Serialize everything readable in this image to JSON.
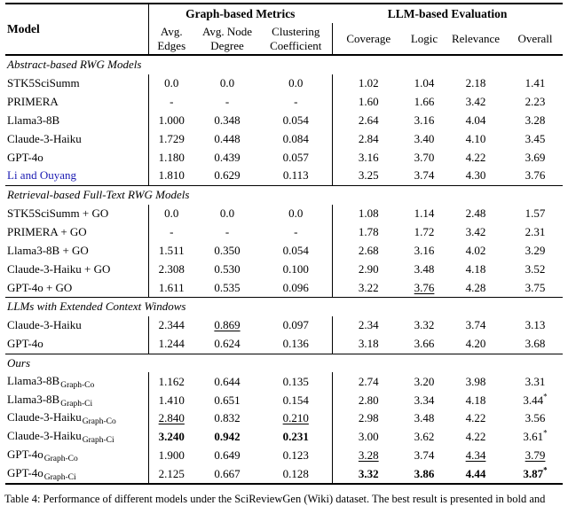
{
  "table": {
    "header": {
      "model": "Model",
      "groups": [
        {
          "label": "Graph-based Metrics"
        },
        {
          "label": "LLM-based Evaluation"
        }
      ],
      "subheaders": [
        "Avg.\nEdges",
        "Avg. Node\nDegree",
        "Clustering\nCoefficient",
        "Coverage",
        "Logic",
        "Relevance",
        "Overall"
      ]
    },
    "sections": [
      {
        "title": "Abstract-based RWG Models",
        "rows": [
          {
            "model": "STK5SciSumm",
            "values": [
              "0.0",
              "0.0",
              "0.0",
              "1.02",
              "1.04",
              "2.18",
              "1.41"
            ]
          },
          {
            "model": "PRIMERA",
            "values": [
              "-",
              "-",
              "-",
              "1.60",
              "1.66",
              "3.42",
              "2.23"
            ]
          },
          {
            "model": "Llama3-8B",
            "values": [
              "1.000",
              "0.348",
              "0.054",
              "2.64",
              "3.16",
              "4.04",
              "3.28"
            ]
          },
          {
            "model": "Claude-3-Haiku",
            "values": [
              "1.729",
              "0.448",
              "0.084",
              "2.84",
              "3.40",
              "4.10",
              "3.45"
            ]
          },
          {
            "model": "GPT-4o",
            "values": [
              "1.180",
              "0.439",
              "0.057",
              "3.16",
              "3.70",
              "4.22",
              "3.69"
            ]
          },
          {
            "model": "Li and Ouyang",
            "cite": true,
            "values": [
              "1.810",
              "0.629",
              "0.113",
              "3.25",
              "3.74",
              "4.30",
              "3.76"
            ]
          }
        ]
      },
      {
        "title": "Retrieval-based Full-Text RWG Models",
        "rows": [
          {
            "model": "STK5SciSumm + GO",
            "values": [
              "0.0",
              "0.0",
              "0.0",
              "1.08",
              "1.14",
              "2.48",
              "1.57"
            ]
          },
          {
            "model": "PRIMERA + GO",
            "values": [
              "-",
              "-",
              "-",
              "1.78",
              "1.72",
              "3.42",
              "2.31"
            ]
          },
          {
            "model": "Llama3-8B + GO",
            "values": [
              "1.511",
              "0.350",
              "0.054",
              "2.68",
              "3.16",
              "4.02",
              "3.29"
            ]
          },
          {
            "model": "Claude-3-Haiku + GO",
            "values": [
              "2.308",
              "0.530",
              "0.100",
              "2.90",
              "3.48",
              "4.18",
              "3.52"
            ]
          },
          {
            "model": "GPT-4o + GO",
            "values": [
              "1.611",
              "0.535",
              "0.096",
              "3.22",
              {
                "t": "3.76",
                "u": true
              },
              "4.28",
              "3.75"
            ]
          }
        ]
      },
      {
        "title": "LLMs with Extended Context Windows",
        "rows": [
          {
            "model": "Claude-3-Haiku",
            "values": [
              "2.344",
              {
                "t": "0.869",
                "u": true
              },
              "0.097",
              "2.34",
              "3.32",
              "3.74",
              "3.13"
            ]
          },
          {
            "model": "GPT-4o",
            "values": [
              "1.244",
              "0.624",
              "0.136",
              "3.18",
              "3.66",
              "4.20",
              "3.68"
            ]
          }
        ]
      },
      {
        "title": "Ours",
        "rows": [
          {
            "model": "Llama3-8B",
            "sub": "Graph-Co",
            "values": [
              "1.162",
              "0.644",
              "0.135",
              "2.74",
              "3.20",
              "3.98",
              "3.31"
            ]
          },
          {
            "model": "Llama3-8B",
            "sub": "Graph-Ci",
            "values": [
              "1.410",
              "0.651",
              "0.154",
              "2.80",
              "3.34",
              "4.18",
              {
                "t": "3.44",
                "s": "*"
              }
            ]
          },
          {
            "model": "Claude-3-Haiku",
            "sub": "Graph-Co",
            "values": [
              {
                "t": "2.840",
                "u": true
              },
              "0.832",
              {
                "t": "0.210",
                "u": true
              },
              "2.98",
              "3.48",
              "4.22",
              "3.56"
            ]
          },
          {
            "model": "Claude-3-Haiku",
            "sub": "Graph-Ci",
            "values": [
              {
                "t": "3.240",
                "b": true
              },
              {
                "t": "0.942",
                "b": true
              },
              {
                "t": "0.231",
                "b": true
              },
              "3.00",
              "3.62",
              "4.22",
              {
                "t": "3.61",
                "s": "*"
              }
            ]
          },
          {
            "model": "GPT-4o",
            "sub": "Graph-Co",
            "values": [
              "1.900",
              "0.649",
              "0.123",
              {
                "t": "3.28",
                "u": true
              },
              "3.74",
              {
                "t": "4.34",
                "u": true
              },
              {
                "t": "3.79",
                "u": true
              }
            ]
          },
          {
            "model": "GPT-4o",
            "sub": "Graph-Ci",
            "values": [
              "2.125",
              "0.667",
              "0.128",
              {
                "t": "3.32",
                "b": true
              },
              {
                "t": "3.86",
                "b": true
              },
              {
                "t": "4.44",
                "b": true
              },
              {
                "t": "3.87",
                "b": true,
                "s": "*"
              }
            ]
          }
        ]
      }
    ]
  },
  "caption": "Table 4: Performance of different models under the SciReviewGen (Wiki) dataset. The best result is presented in bold and",
  "colors": {
    "citation_blue": "#1a1ab2",
    "rule_black": "#000000"
  }
}
